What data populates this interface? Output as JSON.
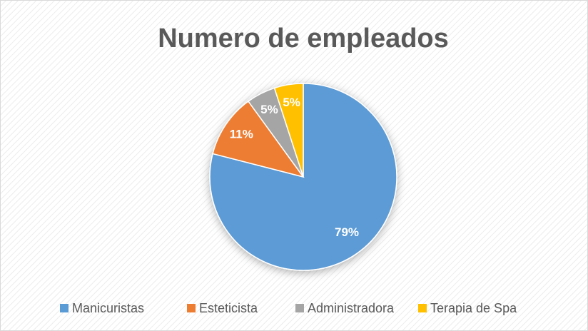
{
  "chart_data": {
    "type": "pie",
    "title": "Numero de empleados",
    "categories": [
      "Manicuristas",
      "Esteticista",
      "Administradora",
      "Terapia de Spa"
    ],
    "values": [
      79,
      11,
      5,
      5
    ],
    "value_labels": [
      "79%",
      "11%",
      "5%",
      "5%"
    ],
    "colors": [
      "#5b9bd5",
      "#ed7d31",
      "#a5a5a5",
      "#ffc000"
    ],
    "legend": "bottom"
  }
}
